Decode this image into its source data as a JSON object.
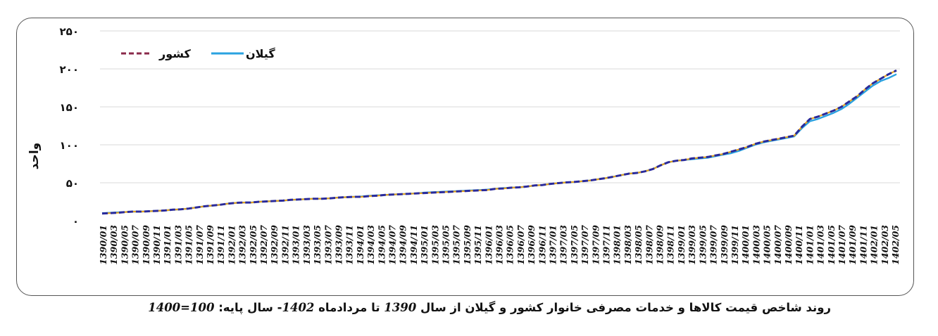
{
  "chart_data": {
    "type": "line",
    "title": "",
    "ylabel": "واحد",
    "xlabel": "",
    "ylim": [
      0,
      250
    ],
    "yticks": [
      0,
      50,
      100,
      150,
      200,
      250
    ],
    "ytick_labels": [
      "٠",
      "۵٠",
      "١٠٠",
      "١۵٠",
      "٢٠٠",
      "٢۵٠"
    ],
    "grid": "horizontal",
    "legend_position": "top-left",
    "x_tick_labels": [
      "1390/01",
      "1390/03",
      "1390/05",
      "1390/07",
      "1390/09",
      "1390/11",
      "1391/01",
      "1391/03",
      "1391/05",
      "1391/07",
      "1391/09",
      "1391/11",
      "1392/01",
      "1392/03",
      "1392/05",
      "1392/07",
      "1392/09",
      "1392/11",
      "1393/01",
      "1393/03",
      "1393/05",
      "1393/07",
      "1393/09",
      "1393/11",
      "1394/01",
      "1394/03",
      "1394/05",
      "1394/07",
      "1394/09",
      "1394/11",
      "1395/01",
      "1395/03",
      "1395/05",
      "1395/07",
      "1395/09",
      "1395/11",
      "1396/01",
      "1396/03",
      "1396/05",
      "1396/07",
      "1396/09",
      "1396/11",
      "1397/01",
      "1397/03",
      "1397/05",
      "1397/07",
      "1397/09",
      "1397/11",
      "1398/01",
      "1398/03",
      "1398/05",
      "1398/07",
      "1398/09",
      "1398/11",
      "1399/01",
      "1399/03",
      "1399/05",
      "1399/07",
      "1399/09",
      "1399/11",
      "1400/01",
      "1400/03",
      "1400/05",
      "1400/07",
      "1400/09",
      "1400/11",
      "1401/01",
      "1401/03",
      "1401/05",
      "1401/07",
      "1401/09",
      "1401/11",
      "1402/01",
      "1402/03",
      "1402/05"
    ],
    "series": [
      {
        "name": "کشور",
        "style": "dashed",
        "color": "#5b1f3a",
        "values": [
          9.5,
          10,
          10.5,
          11.5,
          12,
          12,
          12.5,
          13,
          13.5,
          14.5,
          15,
          16,
          17.5,
          19,
          20,
          21,
          22.5,
          23.5,
          24,
          24,
          25,
          25.5,
          26,
          26.5,
          27.5,
          28,
          28.5,
          29,
          29,
          29.5,
          30.5,
          31,
          31.5,
          31.5,
          32.5,
          33,
          34,
          34.5,
          35,
          35.5,
          36,
          36.5,
          37,
          37.5,
          38,
          38.5,
          39,
          39.5,
          40,
          40.5,
          42,
          42.5,
          43.5,
          44,
          45,
          46.5,
          47,
          48.5,
          49.5,
          50.5,
          51,
          52,
          53,
          54.5,
          56,
          58,
          60,
          62,
          63,
          65,
          68,
          73,
          77,
          79,
          80,
          82,
          83,
          84,
          86,
          88,
          91,
          94,
          97,
          101,
          104,
          106,
          108,
          110,
          112,
          124,
          134,
          137,
          141,
          145,
          150,
          157,
          164,
          173,
          181,
          187,
          193,
          198
        ]
      },
      {
        "name": "گیلان",
        "style": "solid",
        "color": "#2aa2e0",
        "values": [
          10,
          10.5,
          11,
          11.5,
          12,
          12,
          12.5,
          13,
          13.5,
          14.5,
          15,
          16,
          17.5,
          19,
          20,
          21,
          22.5,
          23.5,
          24,
          24,
          25,
          25.5,
          26,
          26.5,
          27.5,
          28,
          28.5,
          29,
          29,
          29.5,
          30.5,
          31,
          31.5,
          32,
          33,
          33.5,
          34,
          34.5,
          35,
          35.5,
          36,
          37,
          37.5,
          38,
          38.5,
          39,
          39.5,
          40,
          40.5,
          41,
          42,
          43,
          43.5,
          44,
          45,
          46.5,
          47,
          48.5,
          49.5,
          50.5,
          51,
          52,
          53,
          54.5,
          56,
          58,
          60,
          62,
          63,
          65,
          68,
          73,
          77,
          79,
          80,
          81,
          82,
          83,
          85,
          87,
          89,
          92,
          96,
          100,
          103,
          105,
          107,
          109,
          111,
          122,
          131,
          134,
          138,
          142,
          147,
          154,
          162,
          170,
          178,
          184,
          188,
          193
        ]
      }
    ]
  },
  "caption": {
    "part1": "روند شاخص قیمت کالاها و خدمات مصرفی خانوار کشور و گیلان  از سال",
    "year_start": "1390",
    "part2": "تا مردادماه",
    "year_end": "1402",
    "part3": "- سال پایه:",
    "base": "100=1400"
  }
}
